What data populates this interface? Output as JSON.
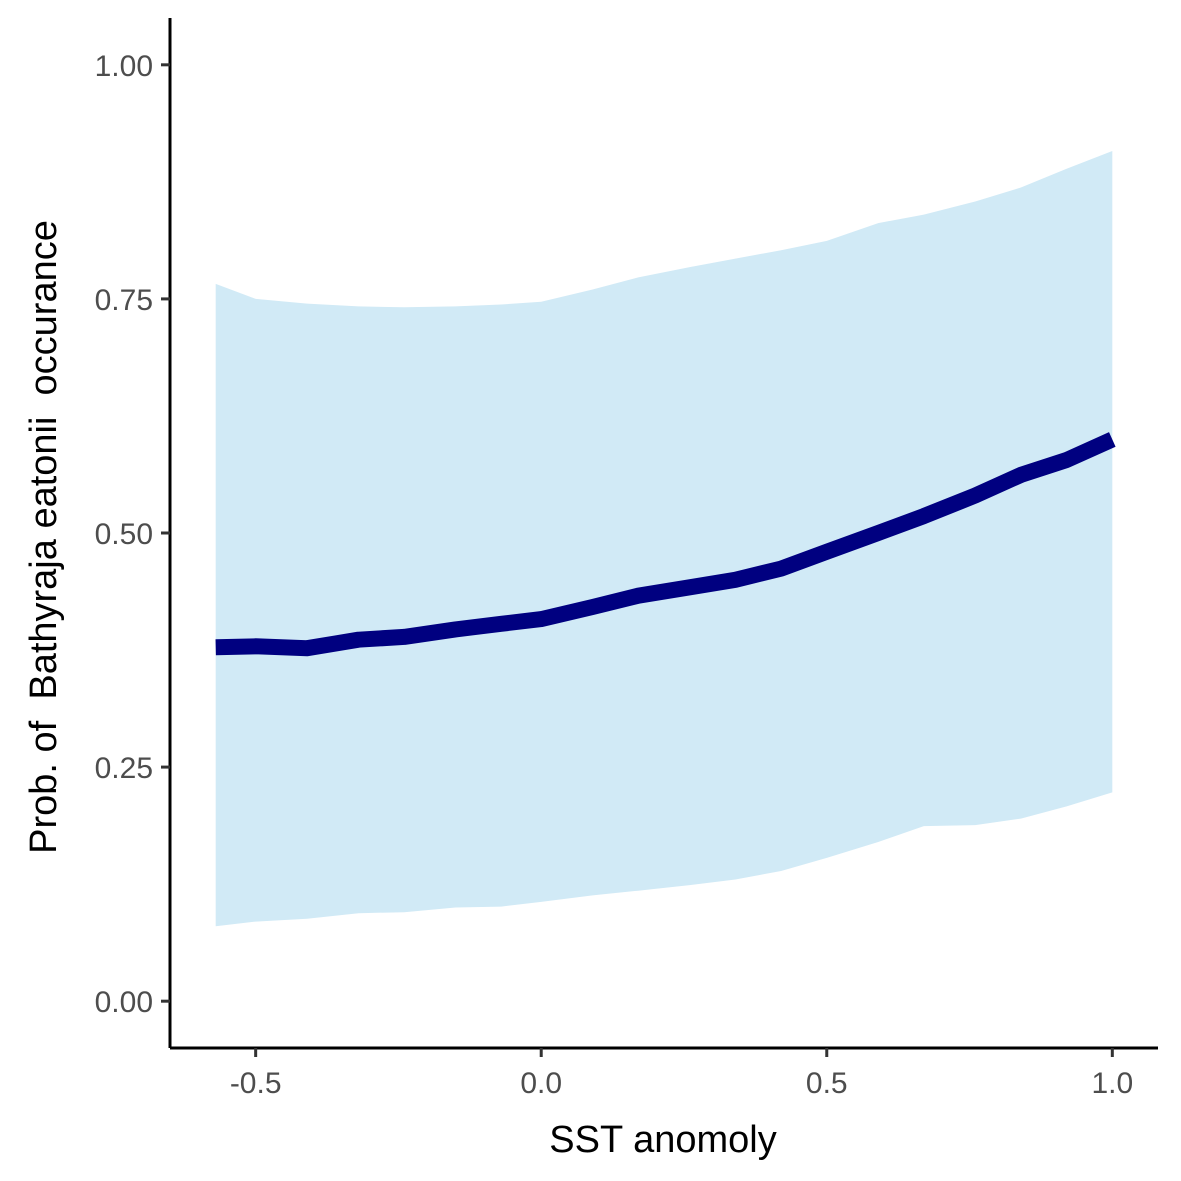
{
  "chart_data": {
    "type": "line",
    "title": "",
    "xlabel": "SST anomoly",
    "ylabel": "Prob. of  Bathyraja eatonii  occurance",
    "xlim": [
      -0.65,
      1.08
    ],
    "ylim": [
      -0.05,
      1.05
    ],
    "x_ticks": [
      -0.5,
      0.0,
      0.5,
      1.0
    ],
    "x_tick_labels": [
      "-0.5",
      "0.0",
      "0.5",
      "1.0"
    ],
    "y_ticks": [
      0.0,
      0.25,
      0.5,
      0.75,
      1.0
    ],
    "y_tick_labels": [
      "0.00",
      "0.25",
      "0.50",
      "0.75",
      "1.00"
    ],
    "grid": false,
    "legend": "none",
    "colors": {
      "line": "#000080",
      "ribbon": "#d1eaf6",
      "axis": "#000000"
    },
    "series": [
      {
        "x": [
          -0.57,
          -0.5,
          -0.41,
          -0.32,
          -0.24,
          -0.15,
          -0.07,
          0.0,
          0.09,
          0.17,
          0.26,
          0.34,
          0.42,
          0.5,
          0.59,
          0.67,
          0.76,
          0.84,
          0.92,
          1.0
        ],
        "y": [
          0.378,
          0.379,
          0.377,
          0.386,
          0.389,
          0.397,
          0.403,
          0.408,
          0.421,
          0.433,
          0.442,
          0.45,
          0.462,
          0.48,
          0.5,
          0.518,
          0.54,
          0.562,
          0.578,
          0.6
        ],
        "lower": [
          0.08,
          0.085,
          0.088,
          0.094,
          0.095,
          0.1,
          0.101,
          0.106,
          0.113,
          0.118,
          0.124,
          0.13,
          0.139,
          0.153,
          0.17,
          0.187,
          0.188,
          0.195,
          0.208,
          0.223
        ],
        "upper": [
          0.766,
          0.75,
          0.745,
          0.742,
          0.741,
          0.742,
          0.744,
          0.747,
          0.76,
          0.773,
          0.784,
          0.793,
          0.802,
          0.812,
          0.831,
          0.84,
          0.854,
          0.869,
          0.889,
          0.908
        ]
      }
    ]
  }
}
